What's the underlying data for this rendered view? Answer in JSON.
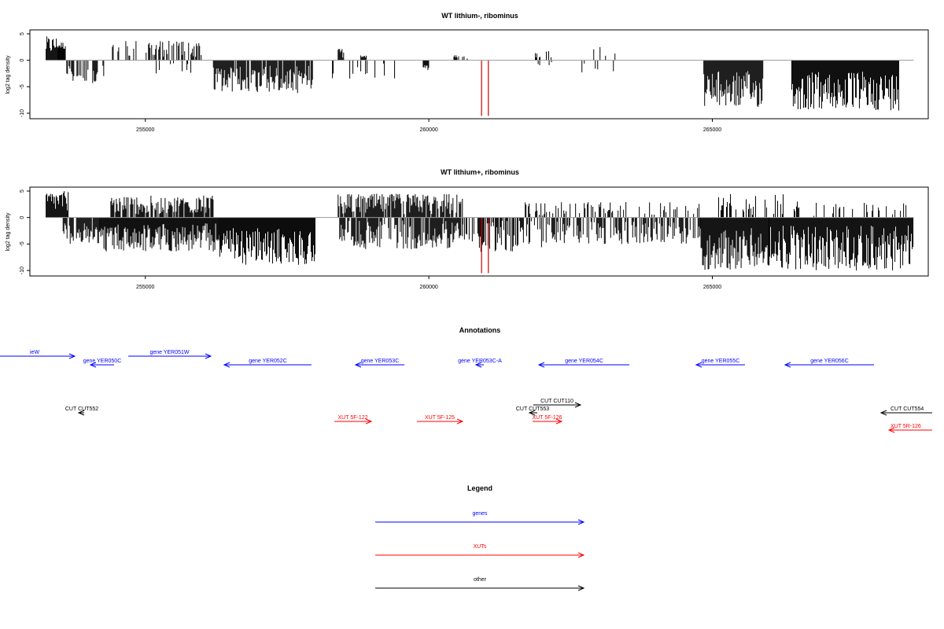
{
  "chart_data": [
    {
      "type": "bar",
      "title": "WT lithium-, ribominus",
      "xlabel": "",
      "ylabel": "log2 tag density",
      "xlim": [
        253200,
        268600
      ],
      "ylim": [
        -11,
        5.5
      ],
      "yticks": [
        5,
        0,
        -5,
        -10
      ],
      "xticks": [
        255000,
        260000,
        265000
      ],
      "bar_color": "#000000",
      "highlight_color": "#cc0000",
      "highlights": [
        {
          "x": 260930,
          "y": -10.5
        },
        {
          "x": 261050,
          "y": -10.5
        }
      ],
      "segments": [
        {
          "x0": 253250,
          "x1": 253450,
          "lo": 1,
          "hi": 4.5,
          "sign": 1
        },
        {
          "x0": 253450,
          "x1": 253600,
          "lo": 2,
          "hi": 3.5,
          "sign": 1
        },
        {
          "x0": 253600,
          "x1": 254300,
          "lo": 1,
          "hi": 4.5,
          "sign": -1,
          "density": 0.5
        },
        {
          "x0": 254350,
          "x1": 254850,
          "lo": 0.3,
          "hi": 4,
          "sign": 1,
          "density": 0.25
        },
        {
          "x0": 255000,
          "x1": 256000,
          "lo": 0.5,
          "hi": 3.8,
          "sign": 1,
          "density": 0.55
        },
        {
          "x0": 255150,
          "x1": 255900,
          "lo": 0.3,
          "hi": 2.5,
          "sign": -1,
          "density": 0.2
        },
        {
          "x0": 256200,
          "x1": 258000,
          "lo": 1,
          "hi": 6.2,
          "sign": -1,
          "density": 0.9
        },
        {
          "x0": 258300,
          "x1": 259400,
          "lo": 0.3,
          "hi": 3.5,
          "sign": -1,
          "density": 0.2
        },
        {
          "x0": 258400,
          "x1": 258500,
          "lo": 0.5,
          "hi": 2.3,
          "sign": 1
        },
        {
          "x0": 258800,
          "x1": 258900,
          "lo": 0.5,
          "hi": 1.2,
          "sign": 1
        },
        {
          "x0": 259900,
          "x1": 260000,
          "lo": 0.5,
          "hi": 2,
          "sign": -1
        },
        {
          "x0": 260400,
          "x1": 260800,
          "lo": 0.3,
          "hi": 1,
          "sign": 1,
          "density": 0.15
        },
        {
          "x0": 261850,
          "x1": 262300,
          "lo": 0.5,
          "hi": 2,
          "sign": 1,
          "density": 0.15
        },
        {
          "x0": 261900,
          "x1": 262200,
          "lo": 0.3,
          "hi": 1.2,
          "sign": -1,
          "density": 0.2
        },
        {
          "x0": 262700,
          "x1": 263300,
          "lo": 0.5,
          "hi": 3,
          "sign": 1,
          "density": 0.1
        },
        {
          "x0": 262700,
          "x1": 263300,
          "lo": 0.5,
          "hi": 2.5,
          "sign": -1,
          "density": 0.1
        },
        {
          "x0": 264850,
          "x1": 265900,
          "lo": 2,
          "hi": 9,
          "sign": -1,
          "density": 1
        },
        {
          "x0": 266400,
          "x1": 268300,
          "lo": 2,
          "hi": 9.5,
          "sign": -1,
          "density": 1
        }
      ]
    },
    {
      "type": "bar",
      "title": "WT lithium+, ribominus",
      "xlabel": "",
      "ylabel": "log2 tag density",
      "xlim": [
        253200,
        268600
      ],
      "ylim": [
        -11,
        5.5
      ],
      "yticks": [
        5,
        0,
        -5,
        -10
      ],
      "xticks": [
        255000,
        260000,
        265000
      ],
      "bar_color": "#000000",
      "highlight_color": "#cc0000",
      "highlights": [
        {
          "x": 260930,
          "y": -10.5
        },
        {
          "x": 261050,
          "y": -10.5
        }
      ],
      "segments": [
        {
          "x0": 253250,
          "x1": 253650,
          "lo": 1,
          "hi": 5,
          "sign": 1
        },
        {
          "x0": 253550,
          "x1": 254200,
          "lo": 1,
          "hi": 5,
          "sign": -1,
          "density": 0.8
        },
        {
          "x0": 254200,
          "x1": 256300,
          "lo": 1,
          "hi": 6.5,
          "sign": -1,
          "density": 1
        },
        {
          "x0": 254350,
          "x1": 256200,
          "lo": 0.5,
          "hi": 4.2,
          "sign": 1,
          "density": 0.8
        },
        {
          "x0": 256300,
          "x1": 258000,
          "lo": 2,
          "hi": 9,
          "sign": -1,
          "density": 1
        },
        {
          "x0": 258400,
          "x1": 260600,
          "lo": 0.5,
          "hi": 4.5,
          "sign": 1,
          "density": 0.85
        },
        {
          "x0": 258400,
          "x1": 260600,
          "lo": 0.5,
          "hi": 6,
          "sign": -1,
          "density": 0.8
        },
        {
          "x0": 260600,
          "x1": 262000,
          "lo": 0.5,
          "hi": 6.5,
          "sign": -1,
          "density": 0.6
        },
        {
          "x0": 261700,
          "x1": 264800,
          "lo": 0.3,
          "hi": 3,
          "sign": 1,
          "density": 0.25
        },
        {
          "x0": 262000,
          "x1": 264800,
          "lo": 0.5,
          "hi": 5,
          "sign": -1,
          "density": 0.55
        },
        {
          "x0": 264800,
          "x1": 266000,
          "lo": 2,
          "hi": 10,
          "sign": -1,
          "density": 1
        },
        {
          "x0": 265000,
          "x1": 266500,
          "lo": 0.5,
          "hi": 4.5,
          "sign": 1,
          "density": 0.2
        },
        {
          "x0": 266000,
          "x1": 268550,
          "lo": 1.5,
          "hi": 10,
          "sign": -1,
          "density": 1
        },
        {
          "x0": 266500,
          "x1": 268500,
          "lo": 0.3,
          "hi": 3,
          "sign": 1,
          "density": 0.15
        }
      ]
    }
  ],
  "annotations": {
    "title": "Annotations",
    "features": [
      {
        "label": "ieW",
        "color": "#0000ff",
        "row": 0,
        "x1": 0,
        "x2": 95,
        "dir": 1
      },
      {
        "label": "gene YER050C",
        "color": "#0000ff",
        "row": 1,
        "x1": 115,
        "x2": 145,
        "dir": -1
      },
      {
        "label": "gene YER051W",
        "color": "#0000ff",
        "row": 0,
        "x1": 163,
        "x2": 268,
        "dir": 1
      },
      {
        "label": "gene YER052C",
        "color": "#0000ff",
        "row": 1,
        "x1": 285,
        "x2": 396,
        "dir": -1
      },
      {
        "label": "gene YER053C",
        "color": "#0000ff",
        "row": 1,
        "x1": 452,
        "x2": 514,
        "dir": -1
      },
      {
        "label": "gene YER053C-A",
        "color": "#0000ff",
        "row": 1,
        "x1": 605,
        "x2": 615,
        "dir": -1
      },
      {
        "label": "gene YER054C",
        "color": "#0000ff",
        "row": 1,
        "x1": 685,
        "x2": 800,
        "dir": -1
      },
      {
        "label": "gene YER055C",
        "color": "#0000ff",
        "row": 1,
        "x1": 885,
        "x2": 947,
        "dir": -1
      },
      {
        "label": "gene YER056C",
        "color": "#0000ff",
        "row": 1,
        "x1": 998,
        "x2": 1111,
        "dir": -1
      },
      {
        "label": "CUT CUT552",
        "color": "#000000",
        "row": 4,
        "x1": 100,
        "x2": 107,
        "dir": -1
      },
      {
        "label": "CUT CUT110",
        "color": "#000000",
        "row": 3,
        "x1": 678,
        "x2": 738,
        "dir": 1
      },
      {
        "label": "CUT CUT553",
        "color": "#000000",
        "row": 4,
        "x1": 673,
        "x2": 683,
        "dir": -1
      },
      {
        "label": "CUT CUT554",
        "color": "#000000",
        "row": 4,
        "x1": 1120,
        "x2": 1185,
        "dir": -1
      },
      {
        "label": "XUT 5F-122",
        "color": "#ff0000",
        "row": 5,
        "x1": 425,
        "x2": 472,
        "dir": 1
      },
      {
        "label": "XUT 5F-125",
        "color": "#ff0000",
        "row": 5,
        "x1": 530,
        "x2": 588,
        "dir": 1
      },
      {
        "label": "XUT 5F-126",
        "color": "#ff0000",
        "row": 5,
        "x1": 677,
        "x2": 714,
        "dir": 1
      },
      {
        "label": "XUT 5R-126",
        "color": "#ff0000",
        "row": 6,
        "x1": 1130,
        "x2": 1185,
        "dir": -1
      }
    ]
  },
  "legend": {
    "title": "Legend",
    "items": [
      {
        "label": "genes",
        "color": "#0000ff"
      },
      {
        "label": "XUTs",
        "color": "#ff0000"
      },
      {
        "label": "other",
        "color": "#000000"
      }
    ]
  }
}
